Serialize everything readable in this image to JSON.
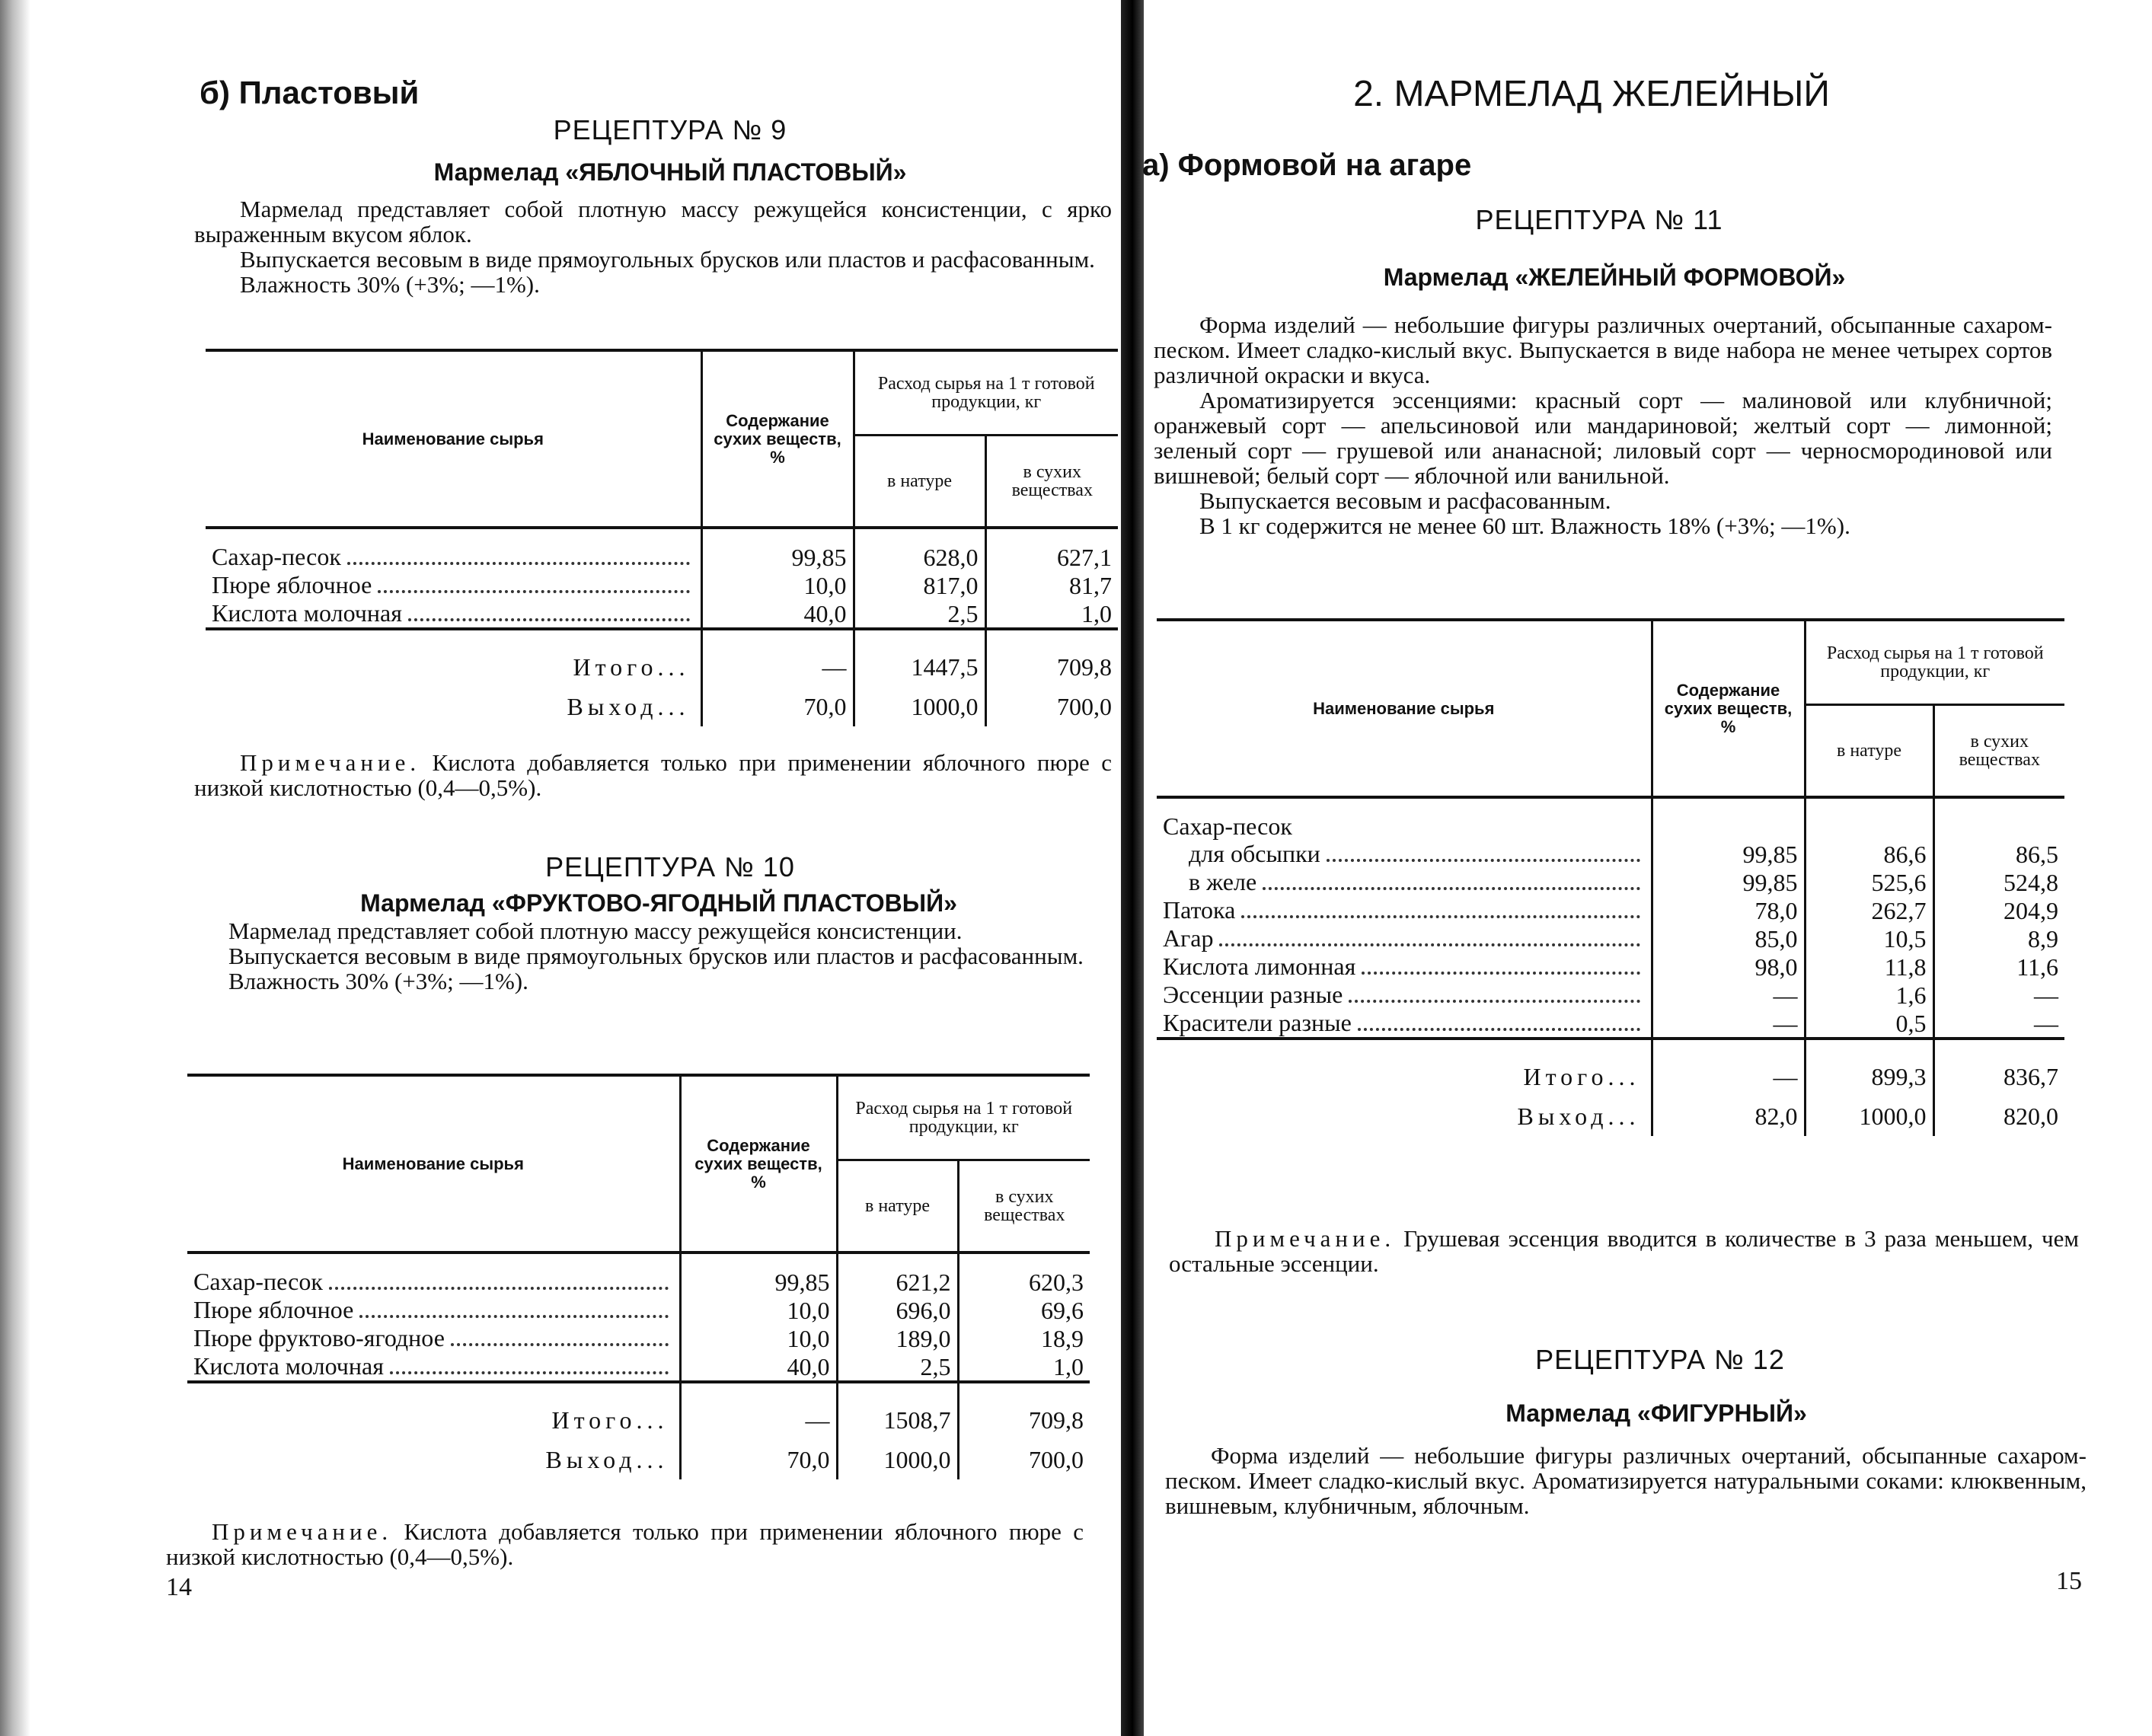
{
  "left_page": {
    "section": "б) Пластовый",
    "recipe9": {
      "number": "РЕЦЕПТУРА № 9",
      "title": "Мармелад «ЯБЛОЧНЫЙ ПЛАСТОВЫЙ»",
      "paragraphs": [
        "Мармелад представляет собой плотную массу режущейся консистенции, с ярко выраженным вкусом яблок.",
        "Выпускается весовым в виде прямоугольных брусков или пластов и расфасованным.",
        "Влажность 30% (+3%; —1%)."
      ],
      "note_label": "Примечание.",
      "note": "Кислота добавляется только при применении яблочного пюре с низкой кислотностью (0,4—0,5%)."
    },
    "recipe10": {
      "number": "РЕЦЕПТУРА № 10",
      "title": "Мармелад «ФРУКТОВО-ЯГОДНЫЙ ПЛАСТОВЫЙ»",
      "paragraphs": [
        "Мармелад представляет собой плотную массу режущейся консистенции.",
        "Выпускается весовым в виде прямоугольных брусков или пластов и расфасованным.",
        "Влажность 30% (+3%; —1%)."
      ],
      "note_label": "Примечание.",
      "note": "Кислота добавляется только при применении яблочного пюре с низкой кислотностью (0,4—0,5%)."
    },
    "page_number": "14"
  },
  "right_page": {
    "chapter": "2. МАРМЕЛАД ЖЕЛЕЙНЫЙ",
    "section": "а) Формовой на агаре",
    "recipe11": {
      "number": "РЕЦЕПТУРА № 11",
      "title": "Мармелад «ЖЕЛЕЙНЫЙ ФОРМОВОЙ»",
      "paragraphs": [
        "Форма изделий — небольшие фигуры различных очертаний, обсыпанные сахаром-песком. Имеет сладко-кислый вкус. Выпускается в виде набора не менее четырех сортов различной окраски и вкуса.",
        "Ароматизируется эссенциями: красный сорт — малиновой или клубничной; оранжевый сорт — апельсиновой или мандариновой; желтый сорт — лимонной; зеленый сорт — грушевой или ананасной; лиловый сорт — черносмородиновой или вишневой; белый сорт — яблочной или ванильной.",
        "Выпускается весовым и расфасованным.",
        "В 1 кг содержится не менее 60 шт. Влажность 18% (+3%; —1%)."
      ],
      "note_label": "Примечание.",
      "note": "Грушевая эссенция вводится в количестве в 3 раза меньшем, чем остальные эссенции."
    },
    "recipe12": {
      "number": "РЕЦЕПТУРА № 12",
      "title": "Мармелад «ФИГУРНЫЙ»",
      "paragraphs": [
        "Форма изделий — небольшие фигуры различных очертаний, обсыпанные сахаром-песком. Имеет сладко-кислый вкус. Ароматизируется натуральными соками: клюквенным, вишневым, клубничным, яблочным."
      ]
    },
    "page_number": "15"
  },
  "table_headers": {
    "name": "Наименование сырья",
    "dry_content": "Содержание сухих веществ, %",
    "usage": "Расход сырья на 1 т готовой продукции, кг",
    "natural": "в натуре",
    "dry": "в сухих веществах"
  },
  "tables": [
    {
      "rows": [
        {
          "name": "Сахар-песок",
          "dry_content": "99,85",
          "natural": "628,0",
          "dry": "627,1"
        },
        {
          "name": "Пюре яблочное",
          "dry_content": "10,0",
          "natural": "817,0",
          "dry": "81,7"
        },
        {
          "name": "Кислота молочная",
          "dry_content": "40,0",
          "natural": "2,5",
          "dry": "1,0"
        }
      ],
      "totals": [
        {
          "name": "Итого...",
          "dry_content": "—",
          "natural": "1447,5",
          "dry": "709,8"
        },
        {
          "name": "Выход...",
          "dry_content": "70,0",
          "natural": "1000,0",
          "dry": "700,0"
        }
      ]
    },
    {
      "rows": [
        {
          "name": "Сахар-песок",
          "dry_content": "99,85",
          "natural": "621,2",
          "dry": "620,3"
        },
        {
          "name": "Пюре яблочное",
          "dry_content": "10,0",
          "natural": "696,0",
          "dry": "69,6"
        },
        {
          "name": "Пюре фруктово-ягодное",
          "dry_content": "10,0",
          "natural": "189,0",
          "dry": "18,9"
        },
        {
          "name": "Кислота молочная",
          "dry_content": "40,0",
          "natural": "2,5",
          "dry": "1,0"
        }
      ],
      "totals": [
        {
          "name": "Итого...",
          "dry_content": "—",
          "natural": "1508,7",
          "dry": "709,8"
        },
        {
          "name": "Выход...",
          "dry_content": "70,0",
          "natural": "1000,0",
          "dry": "700,0"
        }
      ]
    },
    {
      "rows": [
        {
          "name": "Сахар-песок",
          "heading": true
        },
        {
          "name": "для обсыпки",
          "sub": true,
          "dry_content": "99,85",
          "natural": "86,6",
          "dry": "86,5"
        },
        {
          "name": "в желе",
          "sub": true,
          "dry_content": "99,85",
          "natural": "525,6",
          "dry": "524,8"
        },
        {
          "name": "Патока",
          "dry_content": "78,0",
          "natural": "262,7",
          "dry": "204,9"
        },
        {
          "name": "Агар",
          "dry_content": "85,0",
          "natural": "10,5",
          "dry": "8,9"
        },
        {
          "name": "Кислота лимонная",
          "dry_content": "98,0",
          "natural": "11,8",
          "dry": "11,6"
        },
        {
          "name": "Эссенции разные",
          "dry_content": "—",
          "natural": "1,6",
          "dry": "—"
        },
        {
          "name": "Красители разные",
          "dry_content": "—",
          "natural": "0,5",
          "dry": "—"
        }
      ],
      "totals": [
        {
          "name": "Итого...",
          "dry_content": "—",
          "natural": "899,3",
          "dry": "836,7"
        },
        {
          "name": "Выход...",
          "dry_content": "82,0",
          "natural": "1000,0",
          "dry": "820,0"
        }
      ]
    }
  ]
}
